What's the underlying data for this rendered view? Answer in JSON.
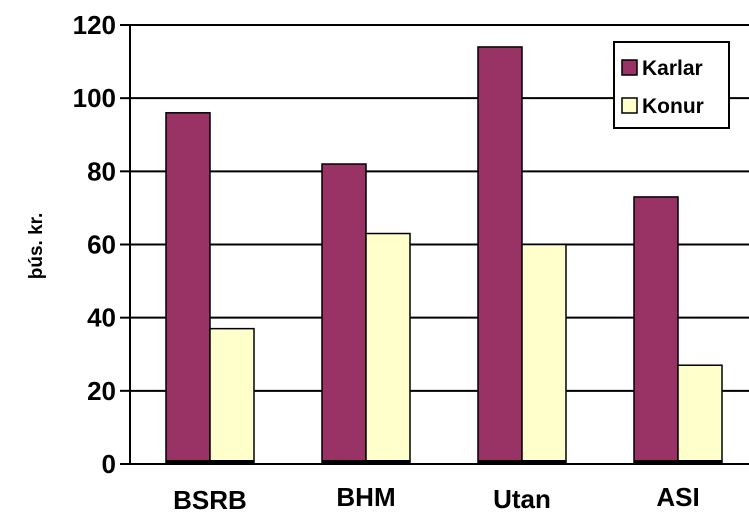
{
  "chart_data": {
    "type": "bar",
    "title": "",
    "xlabel": "",
    "ylabel": "þús. kr.",
    "ylim": [
      0,
      120
    ],
    "yticks": [
      "0",
      "20",
      "40",
      "60",
      "80",
      "100",
      "120"
    ],
    "grid": true,
    "legend_position": "top-right",
    "categories": [
      "BSRB",
      "BHM",
      "Utan",
      "ASI"
    ],
    "series": [
      {
        "name": "Karlar",
        "color": "#993366",
        "values": [
          96,
          82,
          114,
          73
        ]
      },
      {
        "name": "Konur",
        "color": "#FFFFCC",
        "values": [
          37,
          63,
          60,
          27
        ]
      }
    ]
  }
}
